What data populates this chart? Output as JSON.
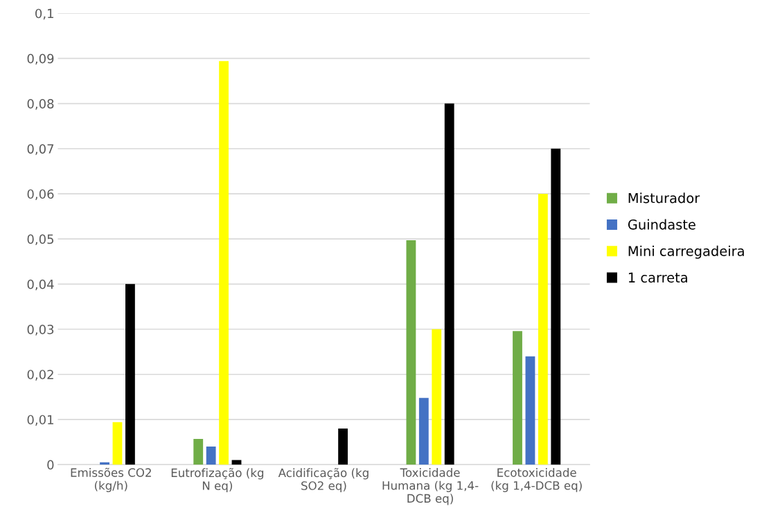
{
  "chart_data": {
    "type": "bar",
    "categories": [
      "Emissões CO2\n(kg/h)",
      "Eutrofização (kg\nN eq)",
      "Acidificação (kg\nSO2 eq)",
      "Toxicidade\nHumana (kg 1,4-\nDCB eq)",
      "Ecotoxicidade\n(kg 1,4-DCB eq)"
    ],
    "series": [
      {
        "name": "Misturador",
        "color": "#70ad47",
        "values": [
          0,
          0.0057,
          0,
          0.0497,
          0.0296
        ]
      },
      {
        "name": "Guindaste",
        "color": "#4472c4",
        "values": [
          0.0005,
          0.004,
          0,
          0.0148,
          0.024
        ]
      },
      {
        "name": "Mini carregadeira",
        "color": "#ffff00",
        "values": [
          0.0094,
          0.0894,
          0,
          0.03,
          0.06
        ]
      },
      {
        "name": "1 carreta",
        "color": "#000000",
        "values": [
          0.04,
          0.001,
          0.008,
          0.08,
          0.07
        ]
      }
    ],
    "ylim": [
      0,
      0.1
    ],
    "yticks": [
      0,
      {
        "value": 0.01,
        "label": "0,01"
      },
      {
        "value": 0.02,
        "label": "0,02"
      },
      {
        "value": 0.03,
        "label": "0,03"
      },
      {
        "value": 0.04,
        "label": "0,04"
      },
      {
        "value": 0.05,
        "label": "0,05"
      },
      {
        "value": 0.06,
        "label": "0,06"
      },
      {
        "value": 0.07,
        "label": "0,07"
      },
      {
        "value": 0.08,
        "label": "0,08"
      },
      {
        "value": 0.09,
        "label": "0,09"
      },
      {
        "value": 0.1,
        "label": "0,1"
      }
    ],
    "grid": "y",
    "legend": "right"
  }
}
